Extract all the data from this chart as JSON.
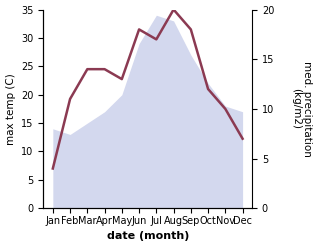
{
  "months": [
    "Jan",
    "Feb",
    "Mar",
    "Apr",
    "May",
    "Jun",
    "Jul",
    "Aug",
    "Sep",
    "Oct",
    "Nov",
    "Dec"
  ],
  "month_positions": [
    0,
    1,
    2,
    3,
    4,
    5,
    6,
    7,
    8,
    9,
    10,
    11
  ],
  "temperature": [
    14,
    13,
    15,
    17,
    20,
    29,
    34,
    33,
    27,
    22,
    18,
    17
  ],
  "precipitation": [
    4,
    11,
    14,
    14,
    13,
    18,
    17,
    20,
    18,
    12,
    10,
    7
  ],
  "temp_color": "#b0b8e0",
  "precip_color": "#8B3A52",
  "temp_alpha": 0.55,
  "ylim_left": [
    0,
    35
  ],
  "ylim_right": [
    0,
    20
  ],
  "yticks_left": [
    0,
    5,
    10,
    15,
    20,
    25,
    30,
    35
  ],
  "yticks_right": [
    0,
    5,
    10,
    15,
    20
  ],
  "xlabel": "date (month)",
  "ylabel_left": "max temp (C)",
  "ylabel_right": "med. precipitation\n(kg/m2)",
  "background_color": "#ffffff"
}
